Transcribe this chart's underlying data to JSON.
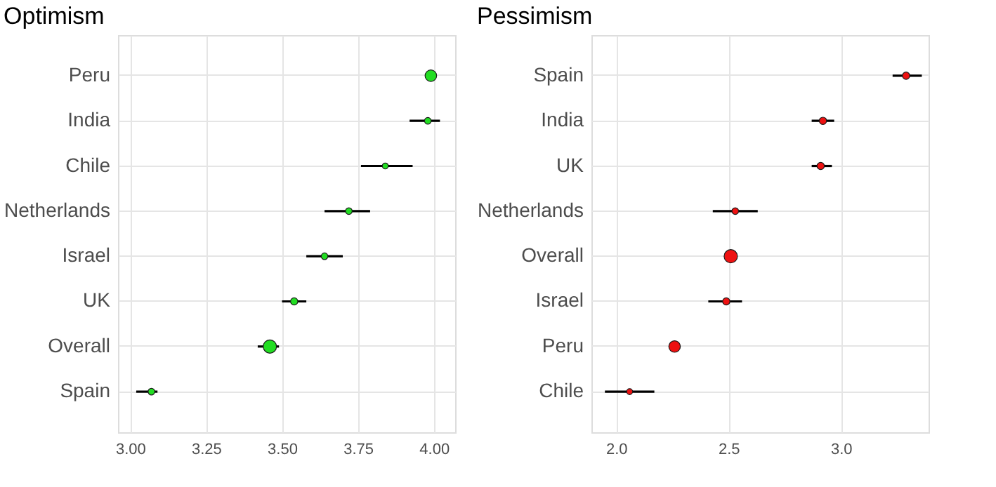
{
  "chart_data": [
    {
      "type": "bubble",
      "title": "Optimism",
      "orientation": "horizontal",
      "grid": true,
      "categories": [
        "Peru",
        "India",
        "Chile",
        "Netherlands",
        "Israel",
        "UK",
        "Overall",
        "Spain"
      ],
      "values": [
        3.99,
        3.98,
        3.84,
        3.72,
        3.64,
        3.54,
        3.46,
        3.07
      ],
      "errors": [
        null,
        [
          3.92,
          4.02
        ],
        [
          3.76,
          3.93
        ],
        [
          3.64,
          3.79
        ],
        [
          3.58,
          3.7
        ],
        [
          3.5,
          3.58
        ],
        [
          3.42,
          3.49
        ],
        [
          3.02,
          3.09
        ]
      ],
      "sizes": [
        0.75,
        0.25,
        0.2,
        0.25,
        0.25,
        0.3,
        1,
        0.25
      ],
      "color": "#22dd22",
      "xlim": [
        2.96,
        4.07
      ],
      "xticks": [
        {
          "value": 3,
          "label": "3.00"
        },
        3.25,
        {
          "value": 3.5,
          "label": "3.50"
        },
        3.75,
        {
          "value": 4,
          "label": "4.00"
        }
      ]
    },
    {
      "type": "bubble",
      "title": "Pessimism",
      "orientation": "horizontal",
      "grid": true,
      "categories": [
        "Spain",
        "India",
        "UK",
        "Netherlands",
        "Overall",
        "Israel",
        "Peru",
        "Chile"
      ],
      "values": [
        3.29,
        2.92,
        2.91,
        2.53,
        2.51,
        2.49,
        2.26,
        2.06
      ],
      "errors": [
        [
          3.23,
          3.36
        ],
        [
          2.87,
          2.97
        ],
        [
          2.87,
          2.96
        ],
        [
          2.43,
          2.63
        ],
        null,
        [
          2.41,
          2.56
        ],
        null,
        [
          1.95,
          2.17
        ]
      ],
      "sizes": [
        0.3,
        0.3,
        0.3,
        0.25,
        1,
        0.3,
        0.75,
        0.2
      ],
      "color": "#ee1111",
      "xlim": [
        1.89,
        3.39
      ],
      "xticks": [
        {
          "value": 2,
          "label": "2.0"
        },
        2.5,
        {
          "value": 3,
          "label": "3.0"
        }
      ]
    }
  ]
}
